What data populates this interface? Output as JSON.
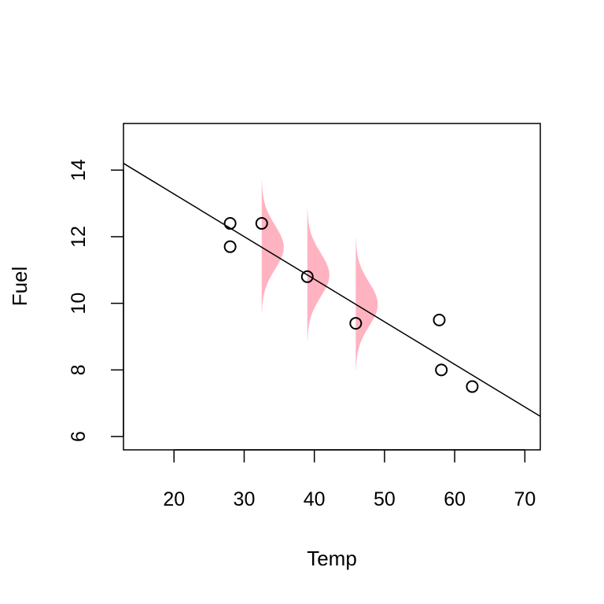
{
  "chart_data": {
    "type": "scatter",
    "xlabel": "Temp",
    "ylabel": "Fuel",
    "xlim": [
      12.8,
      72.2
    ],
    "ylim": [
      5.6,
      15.4
    ],
    "x_ticks": [
      20,
      30,
      40,
      50,
      60,
      70
    ],
    "y_ticks": [
      6,
      8,
      10,
      12,
      14
    ],
    "points": [
      {
        "x": 28.0,
        "y": 12.4
      },
      {
        "x": 28.0,
        "y": 11.7
      },
      {
        "x": 32.5,
        "y": 12.4
      },
      {
        "x": 39.0,
        "y": 10.8
      },
      {
        "x": 45.9,
        "y": 9.4
      },
      {
        "x": 57.8,
        "y": 9.5
      },
      {
        "x": 58.1,
        "y": 8.0
      },
      {
        "x": 62.5,
        "y": 7.5
      }
    ],
    "regression_line": {
      "intercept": 15.84,
      "slope": -0.1279
    },
    "error_densities": {
      "color": "#ffb3c1",
      "sd": 0.66,
      "x": [
        32.5,
        39.0,
        45.9
      ]
    },
    "grid": false,
    "legend": "none"
  }
}
